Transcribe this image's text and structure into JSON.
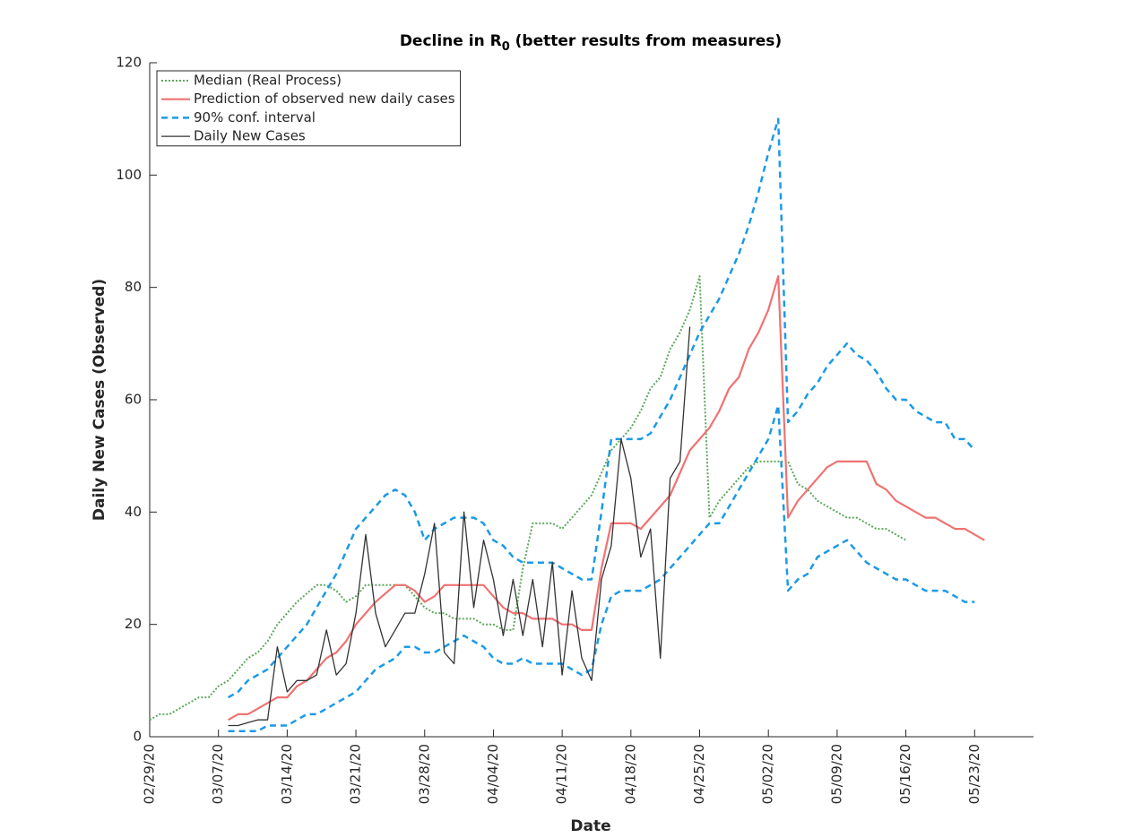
{
  "chart_data": {
    "type": "line",
    "title": [
      "Decline in R",
      "0",
      " (better results from measures)"
    ],
    "xlabel": "Date",
    "ylabel": "Daily New Cases (Observed)",
    "xlim": [
      "02/29/20",
      "05/29/20"
    ],
    "xticks": [
      "02/29/20",
      "03/07/20",
      "03/14/20",
      "03/21/20",
      "03/28/20",
      "04/04/20",
      "04/11/20",
      "04/18/20",
      "04/25/20",
      "05/02/20",
      "05/09/20",
      "05/16/20",
      "05/23/20"
    ],
    "ylim": [
      0,
      120
    ],
    "yticks": [
      0,
      20,
      40,
      60,
      80,
      100,
      120
    ],
    "legend": "upper left",
    "x": [
      "02/29/20",
      "03/01/20",
      "03/02/20",
      "03/03/20",
      "03/04/20",
      "03/05/20",
      "03/06/20",
      "03/07/20",
      "03/08/20",
      "03/09/20",
      "03/10/20",
      "03/11/20",
      "03/12/20",
      "03/13/20",
      "03/14/20",
      "03/15/20",
      "03/16/20",
      "03/17/20",
      "03/18/20",
      "03/19/20",
      "03/20/20",
      "03/21/20",
      "03/22/20",
      "03/23/20",
      "03/24/20",
      "03/25/20",
      "03/26/20",
      "03/27/20",
      "03/28/20",
      "03/29/20",
      "03/30/20",
      "03/31/20",
      "04/01/20",
      "04/02/20",
      "04/03/20",
      "04/04/20",
      "04/05/20",
      "04/06/20",
      "04/07/20",
      "04/08/20",
      "04/09/20",
      "04/10/20",
      "04/11/20",
      "04/12/20",
      "04/13/20",
      "04/14/20",
      "04/15/20",
      "04/16/20",
      "04/17/20",
      "04/18/20",
      "04/19/20",
      "04/20/20",
      "04/21/20",
      "04/22/20",
      "04/23/20",
      "04/24/20",
      "04/25/20",
      "04/26/20",
      "04/27/20",
      "04/28/20",
      "04/29/20",
      "04/30/20",
      "05/01/20",
      "05/02/20",
      "05/03/20",
      "05/04/20",
      "05/05/20",
      "05/06/20",
      "05/07/20",
      "05/08/20",
      "05/09/20",
      "05/10/20",
      "05/11/20",
      "05/12/20",
      "05/13/20",
      "05/14/20",
      "05/15/20",
      "05/16/20",
      "05/17/20",
      "05/18/20",
      "05/19/20",
      "05/20/20",
      "05/21/20",
      "05/22/20",
      "05/23/20",
      "05/24/20"
    ],
    "series": [
      {
        "name": "Median (Real Process)",
        "color": "#5aa85a",
        "style": "dotted",
        "width": 2,
        "values": [
          3,
          4,
          4,
          5,
          6,
          7,
          7,
          9,
          10,
          12,
          14,
          15,
          17,
          20,
          22,
          24,
          25.5,
          27,
          27,
          26,
          24,
          25,
          27,
          27,
          27,
          27,
          27,
          25,
          23,
          22,
          22,
          21,
          21,
          21,
          20,
          20,
          19,
          19,
          30,
          38,
          38,
          38,
          37,
          39,
          41,
          43,
          47,
          51,
          53,
          55,
          58,
          62,
          64,
          69,
          72,
          76,
          82,
          39,
          42,
          44,
          46,
          48,
          49,
          49,
          49,
          49,
          45,
          44,
          42,
          41,
          40,
          39,
          39,
          38,
          37,
          37,
          36,
          35,
          null,
          null,
          null,
          null,
          null,
          null,
          null,
          null
        ]
      },
      {
        "name": "Prediction of observed new daily cases",
        "color": "#f07272",
        "style": "solid",
        "width": 2.2,
        "values": [
          null,
          null,
          null,
          null,
          null,
          null,
          null,
          null,
          3,
          4,
          4,
          5,
          6,
          7,
          7,
          9,
          10,
          12,
          14,
          15,
          17,
          20,
          22,
          24,
          25.5,
          27,
          27,
          26,
          24,
          25,
          27,
          27,
          27,
          27,
          27,
          25,
          23,
          22,
          22,
          21,
          21,
          21,
          20,
          20,
          19,
          19,
          30,
          38,
          38,
          38,
          37,
          39,
          41,
          43,
          47,
          51,
          53,
          55,
          58,
          62,
          64,
          69,
          72,
          76,
          82,
          39,
          42,
          44,
          46,
          48,
          49,
          49,
          49,
          49,
          45,
          44,
          42,
          41,
          40,
          39,
          39,
          38,
          37,
          37,
          36,
          35
        ]
      },
      {
        "name": "90% conf. interval",
        "color": "#1b9ae6",
        "style": "dashed",
        "width": 2.5,
        "values": [
          null,
          null,
          null,
          null,
          null,
          null,
          null,
          null,
          7,
          8,
          10,
          11,
          12,
          14,
          16,
          18,
          20,
          23,
          26,
          29,
          33,
          37,
          39,
          41,
          43,
          44,
          43,
          40,
          35,
          37,
          38,
          39,
          39,
          39,
          38,
          35,
          34,
          32,
          31,
          31,
          31,
          31,
          30,
          29,
          28,
          28,
          40,
          53,
          53,
          53,
          53,
          54,
          57,
          60,
          64,
          68,
          72,
          75,
          78,
          82,
          86,
          91,
          97,
          104,
          110,
          56,
          58,
          61,
          63,
          66,
          68,
          70,
          68,
          67,
          65,
          62,
          60,
          60,
          58,
          57,
          56,
          56,
          53,
          53,
          51,
          null
        ],
        "lower": [
          null,
          null,
          null,
          null,
          null,
          null,
          null,
          null,
          1,
          1,
          1,
          1,
          2,
          2,
          2,
          3,
          4,
          4,
          5,
          6,
          7,
          8,
          10,
          12,
          13,
          14,
          16,
          16,
          15,
          15,
          16,
          17,
          18,
          17,
          16,
          14,
          13,
          13,
          14,
          13,
          13,
          13,
          13,
          12,
          11,
          12,
          20,
          25,
          26,
          26,
          26,
          27,
          28,
          30,
          32,
          34,
          36,
          38,
          38,
          41,
          44,
          47,
          50,
          53,
          59,
          26,
          28,
          29,
          32,
          33,
          34,
          35,
          33,
          31,
          30,
          29,
          28,
          28,
          27,
          26,
          26,
          26,
          25,
          24,
          24,
          null
        ]
      },
      {
        "name": "Daily New Cases",
        "color": "#333333",
        "style": "solid",
        "width": 1.3,
        "values": [
          null,
          null,
          null,
          null,
          null,
          null,
          null,
          null,
          2,
          2,
          2.5,
          3,
          3,
          16,
          8,
          10,
          10,
          11,
          19,
          11,
          13,
          22,
          36,
          22,
          16,
          19,
          22,
          22,
          29,
          38,
          15,
          13,
          40,
          23,
          35,
          28,
          18,
          28,
          18,
          28,
          16,
          31,
          11,
          26,
          14,
          10,
          28,
          34,
          53,
          46,
          32,
          37,
          14,
          46,
          49,
          73,
          null,
          null,
          null,
          null,
          null,
          null,
          null,
          null,
          null,
          null,
          null,
          null,
          null,
          null,
          null,
          null,
          null,
          null,
          null,
          null,
          null,
          null,
          null,
          null,
          null,
          null,
          null,
          null,
          null,
          null
        ]
      }
    ]
  }
}
